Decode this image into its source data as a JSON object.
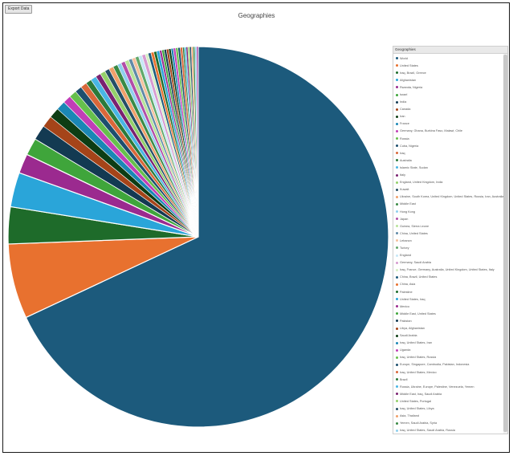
{
  "toolbar": {
    "export_label": "Export Data"
  },
  "legend_header": "Geographies",
  "colors": {
    "palette": [
      "#1c5a7c",
      "#e8712f",
      "#1e6b2a",
      "#2aa5d9",
      "#9b2a8f",
      "#3fa53b",
      "#133a52",
      "#a54419",
      "#0d3d14",
      "#1b87b5",
      "#c13eb7",
      "#66c04c",
      "#1d4f6e",
      "#d9673a",
      "#2b7a3a",
      "#49b6e4",
      "#7a2271",
      "#94d06a",
      "#244e66",
      "#f0a06a",
      "#3a8a45",
      "#8fd0ee",
      "#b24ea8",
      "#b8e39a",
      "#5f8aa8",
      "#f5c19d",
      "#61a86a",
      "#c6e7f6",
      "#d69ad0",
      "#d4efc3"
    ]
  },
  "chart_data": {
    "type": "pie",
    "title": "Geographies",
    "legend_position": "right",
    "slices": [
      {
        "label": "World",
        "value": 69.5
      },
      {
        "label": "United States",
        "value": 6.5
      },
      {
        "label": "Iraq, Brazil, Greece",
        "value": 3.2
      },
      {
        "label": "Afghanistan",
        "value": 3.0
      },
      {
        "label": "Rwanda, Nigeria",
        "value": 1.7
      },
      {
        "label": "Israel",
        "value": 1.5
      },
      {
        "label": "India",
        "value": 1.3
      },
      {
        "label": "Canada",
        "value": 1.0
      },
      {
        "label": "Iran",
        "value": 0.9
      },
      {
        "label": "France",
        "value": 0.8
      },
      {
        "label": "Germany, Ghana, Burkina Faso, Malawi, Chile",
        "value": 0.7
      },
      {
        "label": "Russia",
        "value": 0.65
      },
      {
        "label": "Cuba, Nigeria",
        "value": 0.6
      },
      {
        "label": "Iraq",
        "value": 0.55
      },
      {
        "label": "Australia",
        "value": 0.5
      },
      {
        "label": "Islamic State, Sudan",
        "value": 0.5
      },
      {
        "label": "Italy",
        "value": 0.45
      },
      {
        "label": "England, United Kingdom, India",
        "value": 0.45
      },
      {
        "label": "Kuwait",
        "value": 0.4
      },
      {
        "label": "Ukraine, South Korea, United Kingdom, United States, Russia, Iran, Australia",
        "value": 0.4
      },
      {
        "label": "Middle East",
        "value": 0.4
      },
      {
        "label": "Hong Kong",
        "value": 0.35
      },
      {
        "label": "Japan",
        "value": 0.35
      },
      {
        "label": "Guinea, Sierra Leone",
        "value": 0.35
      },
      {
        "label": "China, United States",
        "value": 0.3
      },
      {
        "label": "Lebanon",
        "value": 0.3
      },
      {
        "label": "Turkey",
        "value": 0.3
      },
      {
        "label": "England",
        "value": 0.3
      },
      {
        "label": "Germany, Saudi Arabia",
        "value": 0.3
      },
      {
        "label": "Iraq, France, Germany, Australia, United Kingdom, United States, Italy",
        "value": 0.25
      },
      {
        "label": "China, Brazil, United States",
        "value": 0.25
      },
      {
        "label": "China, Asia",
        "value": 0.25
      },
      {
        "label": "Palestine",
        "value": 0.25
      },
      {
        "label": "United States, Iraq",
        "value": 0.25
      },
      {
        "label": "Mexico",
        "value": 0.2
      },
      {
        "label": "Middle East, United States",
        "value": 0.2
      },
      {
        "label": "Pakistan",
        "value": 0.2
      },
      {
        "label": "Libya, Afghanistan",
        "value": 0.2
      },
      {
        "label": "Saudi Arabia",
        "value": 0.2
      },
      {
        "label": "Iraq, United States, Iran",
        "value": 0.2
      },
      {
        "label": "Uganda",
        "value": 0.2
      },
      {
        "label": "Iraq, United States, Russia",
        "value": 0.2
      },
      {
        "label": "Europe, Singapore, Cambodia, Pakistan, Indonesia",
        "value": 0.2
      },
      {
        "label": "Iraq, United States, Mexico",
        "value": 0.2
      },
      {
        "label": "Brazil",
        "value": 0.15
      },
      {
        "label": "Russia, Ukraine, Europe, Palestine, Venezuela, Yemen",
        "value": 0.15
      },
      {
        "label": "Middle East, Iraq, Saudi Arabia",
        "value": 0.15
      },
      {
        "label": "United States, Portugal",
        "value": 0.15
      },
      {
        "label": "Iraq, United States, Libya",
        "value": 0.15
      },
      {
        "label": "Asia, Thailand",
        "value": 0.15
      },
      {
        "label": "Yemen, Saudi Arabia, Syria",
        "value": 0.15
      },
      {
        "label": "Iraq, United States, Saudi Arabia, Russia",
        "value": 0.15
      },
      {
        "label": "Iraq, United States, Iran",
        "value": 0.15
      }
    ]
  }
}
